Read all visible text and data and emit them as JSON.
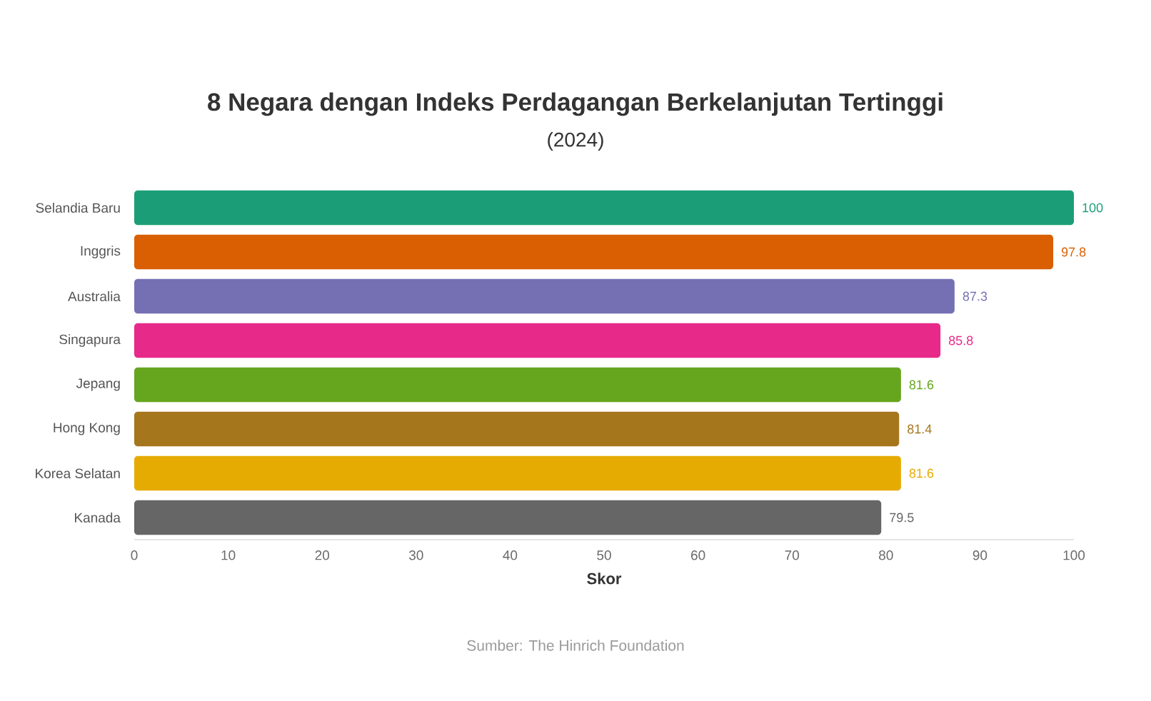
{
  "chart_data": {
    "type": "bar",
    "orientation": "horizontal",
    "title": "8 Negara dengan Indeks Perdagangan Berkelanjutan Tertinggi",
    "subtitle": "(2024)",
    "xlabel": "Skor",
    "categories": [
      "Selandia Baru",
      "Inggris",
      "Australia",
      "Singapura",
      "Jepang",
      "Hong Kong",
      "Korea Selatan",
      "Kanada"
    ],
    "values": [
      100,
      97.8,
      87.3,
      85.8,
      81.6,
      81.4,
      81.6,
      79.5
    ],
    "colors": [
      "#1b9e77",
      "#d95f02",
      "#7570b3",
      "#e7298a",
      "#66a61e",
      "#a6761d",
      "#e6ab02",
      "#666666"
    ],
    "xlim": [
      0,
      100
    ],
    "xticks": [
      0,
      10,
      20,
      30,
      40,
      50,
      60,
      70,
      80,
      90,
      100
    ],
    "data_labels": true,
    "annotations": [
      "Sumber: The Hinrich Foundation"
    ]
  }
}
